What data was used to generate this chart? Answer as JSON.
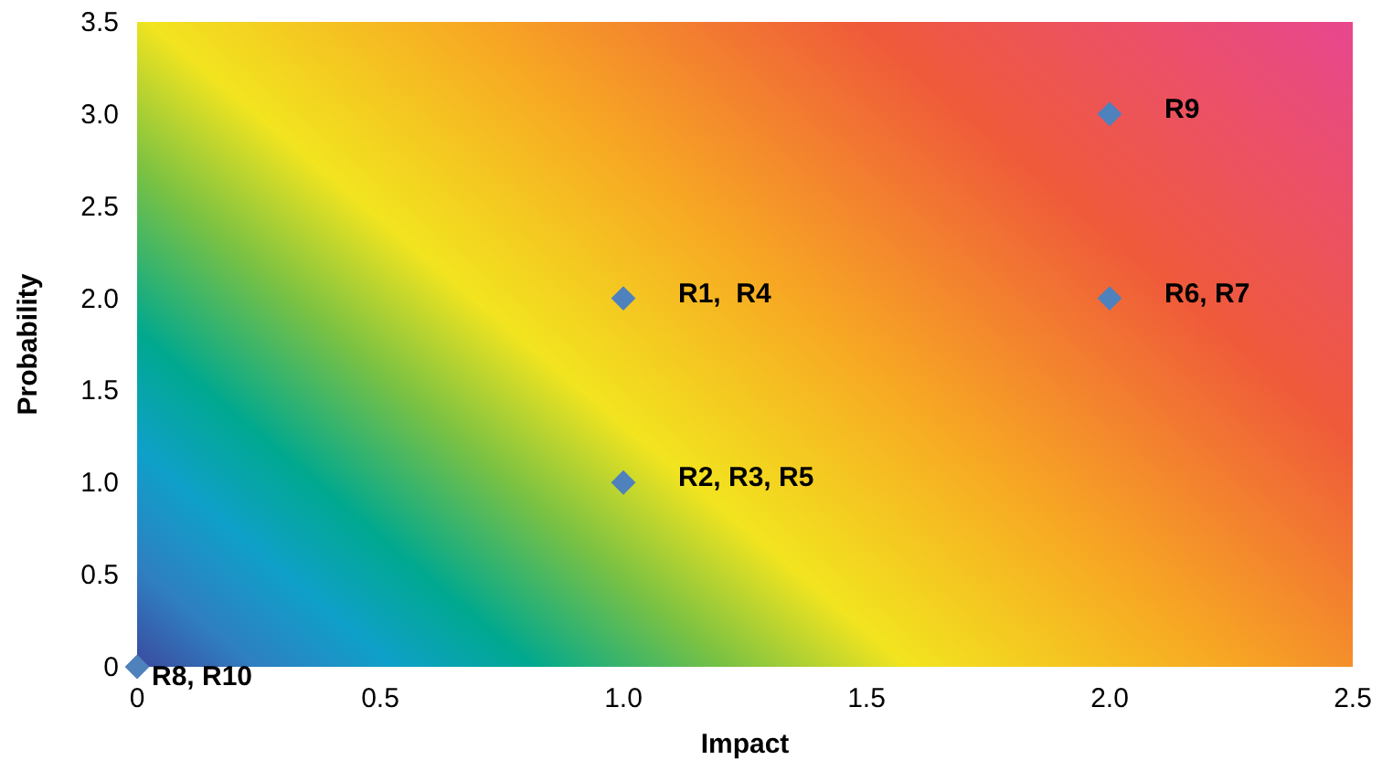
{
  "chart_data": {
    "type": "scatter",
    "xlabel": "Impact",
    "ylabel": "Probability",
    "x": [
      0,
      1,
      1,
      2,
      2
    ],
    "series": [
      {
        "color": "#4f81bd",
        "values": [
          0,
          1,
          2,
          2,
          3
        ]
      }
    ],
    "marker": "diamond",
    "xlim": [
      0,
      2.5
    ],
    "xticks": [
      0,
      0.5,
      {
        "value": 1,
        "label": "1.0"
      },
      1.5,
      {
        "value": 2,
        "label": "2.0"
      },
      2.5
    ],
    "ylim": [
      0,
      3.5
    ],
    "yticks": [
      0,
      0.5,
      {
        "value": 1,
        "label": "1.0"
      },
      1.5,
      {
        "value": 2,
        "label": "2.0"
      },
      2.5,
      {
        "value": 3,
        "label": "3.0"
      },
      3.5
    ],
    "annotations": [
      {
        "text": "R8, R10",
        "x": 0,
        "y": 0
      },
      {
        "text": "R2, R3, R5",
        "x": 1,
        "y": 1
      },
      {
        "text": "R1,  R4",
        "x": 1,
        "y": 2
      },
      {
        "text": "R6, R7",
        "x": 2,
        "y": 2
      },
      {
        "text": "R9",
        "x": 2,
        "y": 3
      }
    ],
    "grid": false
  }
}
